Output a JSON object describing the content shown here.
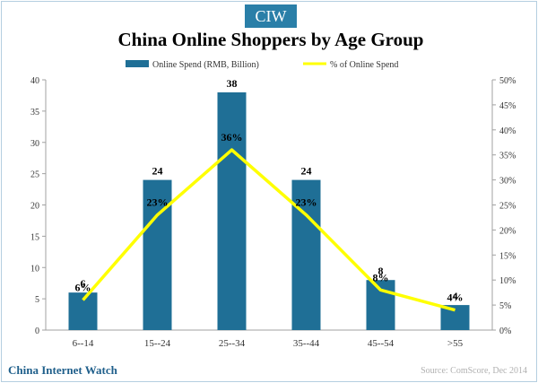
{
  "header": {
    "logo_text": "CIW"
  },
  "footer": {
    "brand": "China Internet Watch",
    "source": "Source: ComScore, Dec 2014"
  },
  "colors": {
    "bar": "#1f6f96",
    "line": "#ffff00",
    "brand": "#2a7fa8",
    "axis": "#a0a0a0"
  },
  "chart_data": {
    "type": "bar",
    "title": "China Online Shoppers by Age Group",
    "categories": [
      "6--14",
      "15--24",
      "25--34",
      "35--44",
      "45--54",
      ">55"
    ],
    "legend_position": "top",
    "series": [
      {
        "name": "Online Spend (RMB, Billion)",
        "type": "bar",
        "axis": "left",
        "values": [
          6,
          24,
          38,
          24,
          8,
          4
        ],
        "labels": [
          "6",
          "24",
          "38",
          "24",
          "8",
          "4"
        ]
      },
      {
        "name": "% of Online Spend",
        "type": "line",
        "axis": "right",
        "values": [
          6,
          23,
          36,
          23,
          8,
          4
        ],
        "labels": [
          "6%",
          "23%",
          "36%",
          "23%",
          "8%",
          "4%"
        ]
      }
    ],
    "y_left": {
      "min": 0,
      "max": 40,
      "ticks": [
        "0",
        "5",
        "10",
        "15",
        "20",
        "25",
        "30",
        "35",
        "40"
      ]
    },
    "y_right": {
      "min": 0,
      "max": 50,
      "ticks": [
        "0%",
        "5%",
        "10%",
        "15%",
        "20%",
        "25%",
        "30%",
        "35%",
        "40%",
        "45%",
        "50%"
      ]
    },
    "grid": false
  }
}
